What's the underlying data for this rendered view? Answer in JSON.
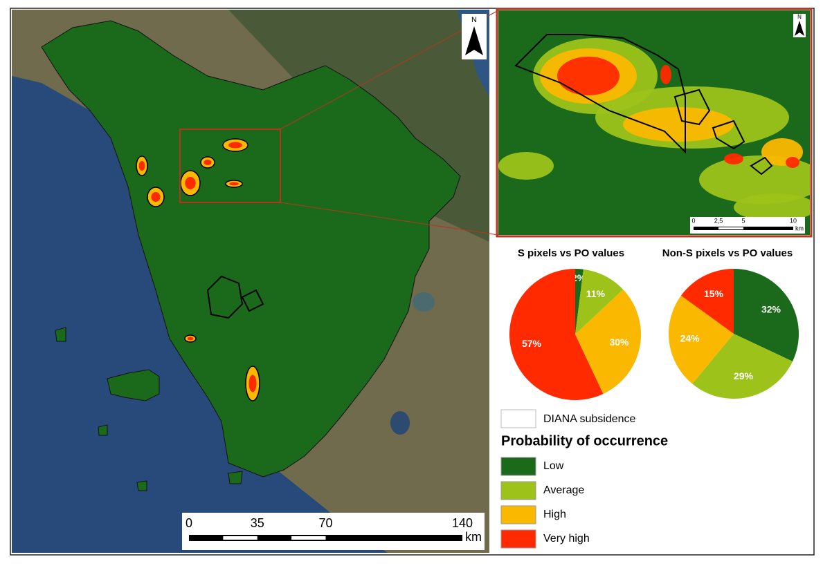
{
  "map": {
    "north_label": "N",
    "scale_bar": {
      "ticks": [
        0,
        35,
        70,
        140
      ],
      "unit": "km"
    },
    "inset": {
      "north_label": "N",
      "scale_bar": {
        "ticks": [
          0,
          {
            "value": 2.5,
            "label": "2,5"
          },
          5,
          10
        ],
        "unit": "km"
      }
    }
  },
  "chart_data": [
    {
      "type": "pie",
      "title": "S pixels vs PO values",
      "categories": [
        "Low",
        "Average",
        "High",
        "Very high"
      ],
      "values": [
        2,
        11,
        30,
        57
      ],
      "value_labels": [
        "2%",
        "11%",
        "30%",
        "57%"
      ],
      "colors": [
        "#1b6a1b",
        "#9dc31b",
        "#fbb800",
        "#ff2a00"
      ]
    },
    {
      "type": "pie",
      "title": "Non-S pixels vs PO values",
      "categories": [
        "Low",
        "Average",
        "High",
        "Very high"
      ],
      "values": [
        32,
        29,
        24,
        15
      ],
      "value_labels": [
        "32%",
        "29%",
        "24%",
        "15%"
      ],
      "colors": [
        "#1b6a1b",
        "#9dc31b",
        "#fbb800",
        "#ff2a00"
      ]
    }
  ],
  "legend": {
    "subsidence_label": "DIANA subsidence",
    "title": "Probability of occurrence"
  }
}
